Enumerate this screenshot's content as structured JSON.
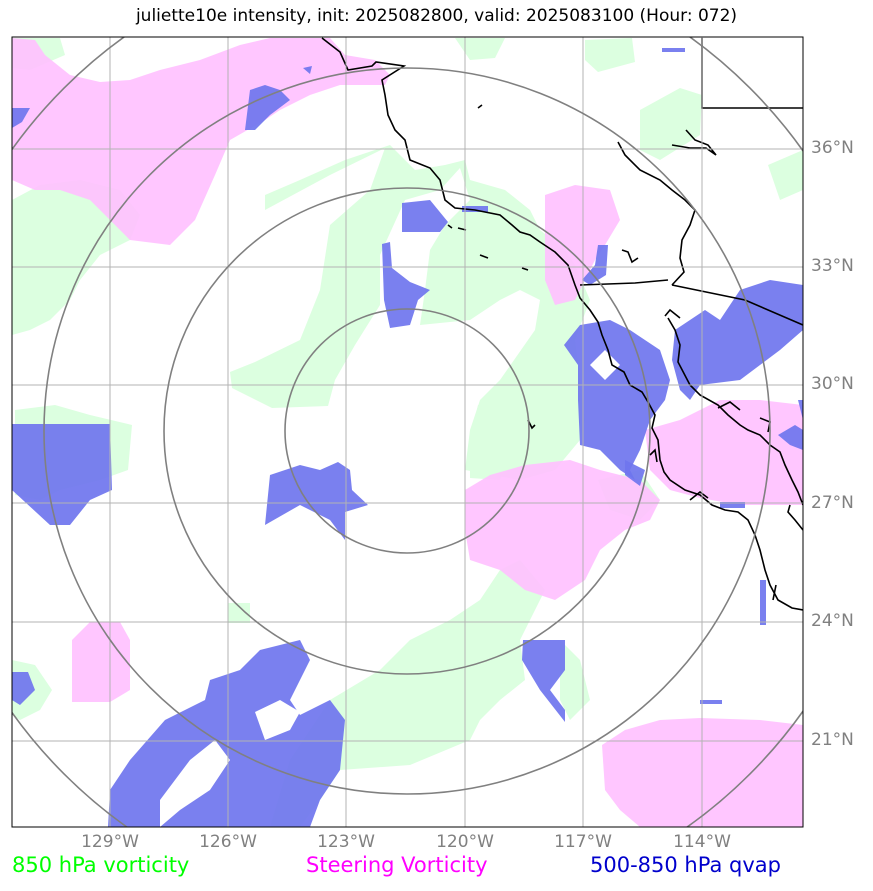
{
  "title": "juliette10e intensity, init: 2025082800, valid: 2025083100 (Hour: 072)",
  "legend": {
    "vort850": {
      "label": "850 hPa vorticity",
      "color": "#00ff00"
    },
    "steering": {
      "label": "Steering Vorticity",
      "color": "#ff00ff"
    },
    "qvap": {
      "label": "500-850 hPa qvap",
      "color": "#0000cc"
    }
  },
  "lat_labels": [
    "36°N",
    "33°N",
    "30°N",
    "27°N",
    "24°N",
    "21°N"
  ],
  "lon_labels": [
    "129°W",
    "126°W",
    "123°W",
    "120°W",
    "117°W",
    "114°W"
  ],
  "colors": {
    "vort850_fill": "#dcffe0",
    "steering_fill": "#ffc0ff",
    "qvap_fill": "#6f75ee",
    "grid": "#b3b3b3",
    "range_rings": "#808080",
    "axis_labels": "#808080"
  }
}
